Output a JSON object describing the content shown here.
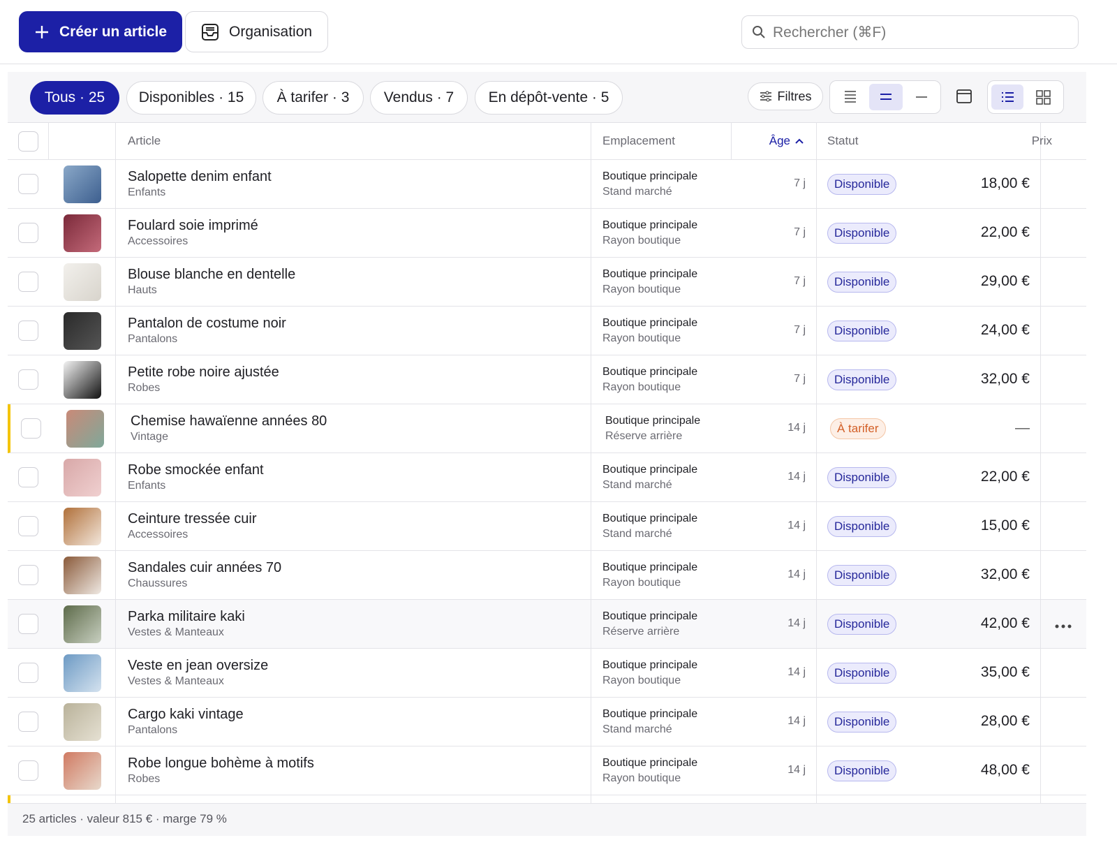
{
  "toolbar": {
    "create": "Créer un article",
    "organize": "Organisation",
    "search": "Rechercher (⌘F)"
  },
  "tabs": [
    "Tous · 25",
    "Disponibles · 15",
    "À tarifer · 3",
    "Vendus · 7",
    "En dépôt-vente · 5"
  ],
  "filters": "Filtres",
  "table": {
    "headers": [
      "Article",
      "Emplacement",
      "Âge",
      "Statut",
      "Prix"
    ],
    "rows": [
      [
        "Salopette denim enfant",
        "Enfants",
        "Boutique principale",
        "Stand marché",
        "7 j",
        "Disponible",
        "18,00 €"
      ],
      [
        "Foulard soie imprimé",
        "Accessoires",
        "Boutique principale",
        "Rayon boutique",
        "7 j",
        "Disponible",
        "22,00 €"
      ],
      [
        "Blouse blanche en dentelle",
        "Hauts",
        "Boutique principale",
        "Rayon boutique",
        "7 j",
        "Disponible",
        "29,00 €"
      ],
      [
        "Pantalon de costume noir",
        "Pantalons",
        "Boutique principale",
        "Rayon boutique",
        "7 j",
        "Disponible",
        "24,00 €"
      ],
      [
        "Petite robe noire ajustée",
        "Robes",
        "Boutique principale",
        "Rayon boutique",
        "7 j",
        "Disponible",
        "32,00 €"
      ],
      [
        "Chemise hawaïenne années 80",
        "Vintage",
        "Boutique principale",
        "Réserve arrière",
        "14 j",
        "À tarifer",
        "—"
      ],
      [
        "Robe smockée enfant",
        "Enfants",
        "Boutique principale",
        "Stand marché",
        "14 j",
        "Disponible",
        "22,00 €"
      ],
      [
        "Ceinture tressée cuir",
        "Accessoires",
        "Boutique principale",
        "Stand marché",
        "14 j",
        "Disponible",
        "15,00 €"
      ],
      [
        "Sandales cuir années 70",
        "Chaussures",
        "Boutique principale",
        "Rayon boutique",
        "14 j",
        "Disponible",
        "32,00 €"
      ],
      [
        "Parka militaire kaki",
        "Vestes & Manteaux",
        "Boutique principale",
        "Réserve arrière",
        "14 j",
        "Disponible",
        "42,00 €"
      ],
      [
        "Veste en jean oversize",
        "Vestes & Manteaux",
        "Boutique principale",
        "Rayon boutique",
        "14 j",
        "Disponible",
        "35,00 €"
      ],
      [
        "Cargo kaki vintage",
        "Pantalons",
        "Boutique principale",
        "Stand marché",
        "14 j",
        "Disponible",
        "28,00 €"
      ],
      [
        "Robe longue bohème à motifs",
        "Robes",
        "Boutique principale",
        "Rayon boutique",
        "14 j",
        "Disponible",
        "48,00 €"
      ]
    ]
  },
  "footer": "25 articles · valeur 815 € · marge 79 %"
}
